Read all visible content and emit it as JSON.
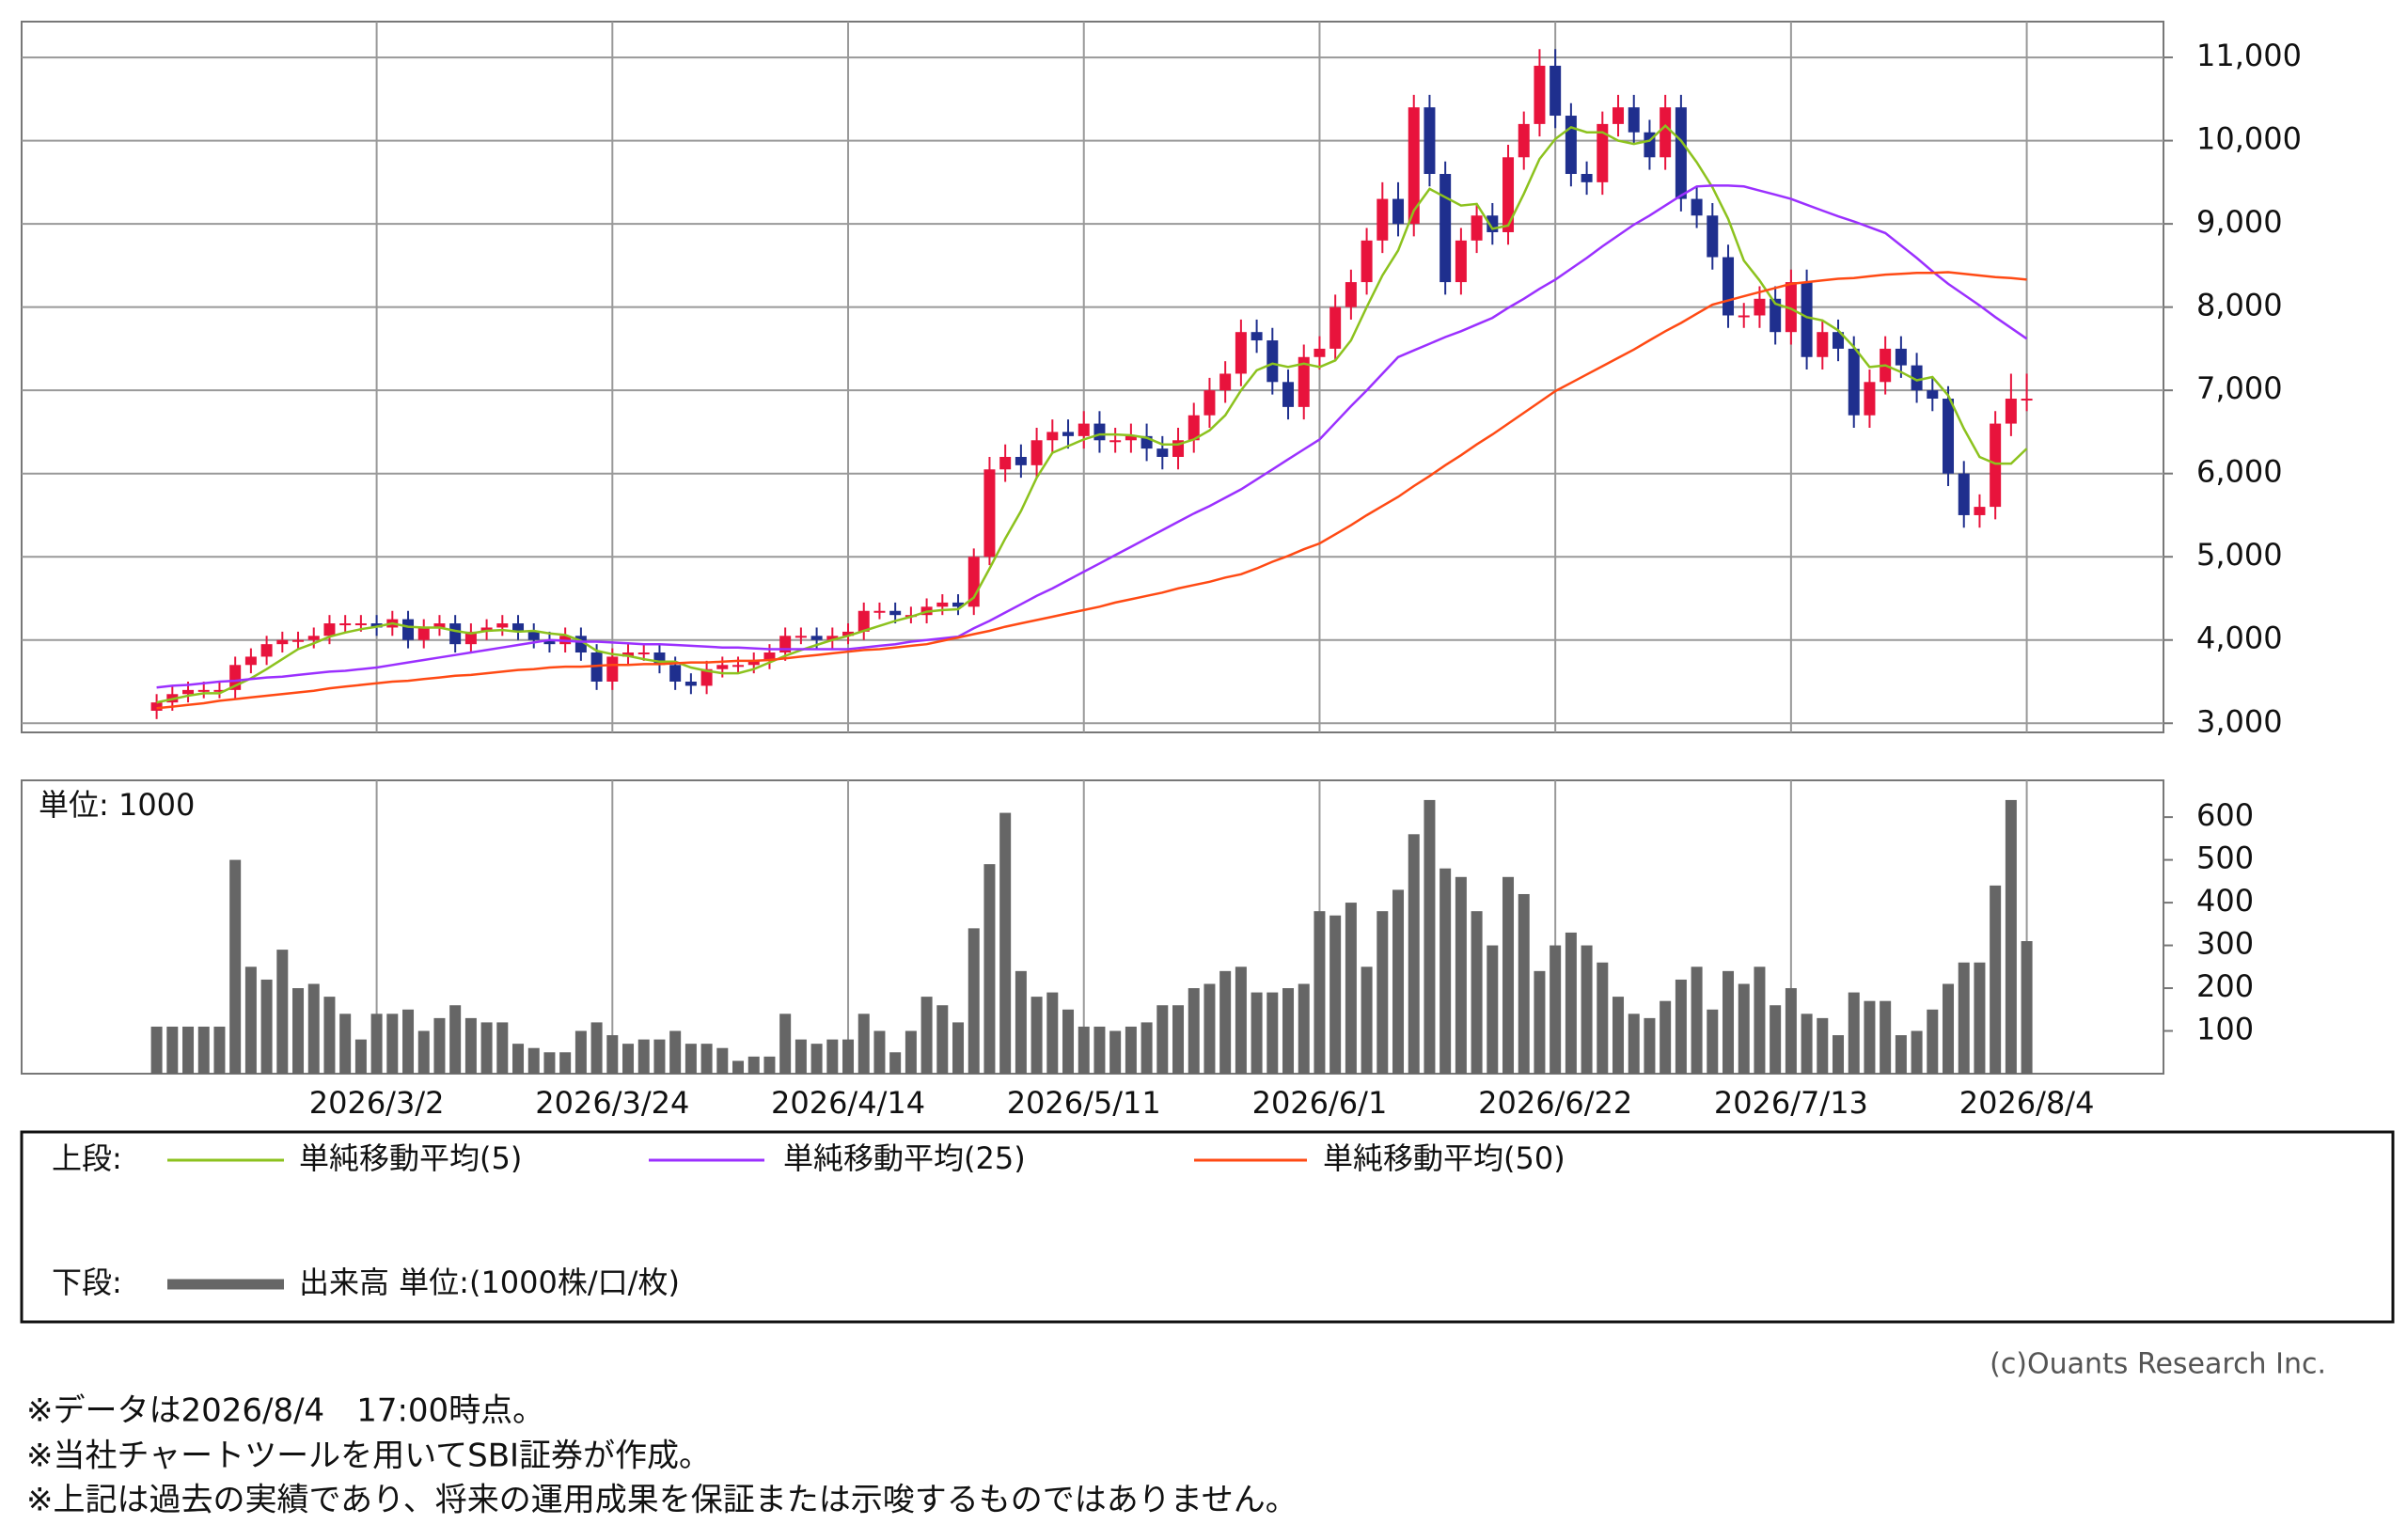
{
  "chart_data": [
    {
      "type": "candlestick",
      "panel_label": "上段:",
      "ylim": [
        2890,
        11430
      ],
      "yticks": [
        {
          "value": 3000,
          "label": "3,000"
        },
        {
          "value": 4000,
          "label": "4,000"
        },
        {
          "value": 5000,
          "label": "5,000"
        },
        {
          "value": 6000,
          "label": "6,000"
        },
        {
          "value": 7000,
          "label": "7,000"
        },
        {
          "value": 8000,
          "label": "8,000"
        },
        {
          "value": 9000,
          "label": "9,000"
        },
        {
          "value": 10000,
          "label": "10,000"
        },
        {
          "value": 11000,
          "label": "11,000"
        }
      ],
      "grid": true,
      "up_color": "#e8133c",
      "down_color": "#1f2f8e",
      "open": [
        3150,
        3250,
        3350,
        3400,
        3400,
        3400,
        3700,
        3800,
        3950,
        4000,
        4000,
        4050,
        4200,
        4200,
        4200,
        4150,
        4250,
        4000,
        4150,
        4200,
        3950,
        4100,
        4150,
        4200,
        4100,
        4000,
        3950,
        4050,
        3850,
        3500,
        3800,
        3850,
        3850,
        3700,
        3500,
        3450,
        3650,
        3700,
        3700,
        3750,
        3850,
        4050,
        4050,
        4000,
        4050,
        4100,
        4350,
        4350,
        4300,
        4300,
        4400,
        4450,
        4400,
        5000,
        6050,
        6200,
        6100,
        6400,
        6500,
        6450,
        6600,
        6400,
        6400,
        6450,
        6300,
        6200,
        6400,
        6700,
        7000,
        7200,
        7700,
        7600,
        7100,
        6800,
        7400,
        7500,
        8000,
        8300,
        8800,
        9300,
        9000,
        10400,
        9600,
        8300,
        8800,
        9100,
        8900,
        9800,
        10200,
        10900,
        10300,
        9600,
        9500,
        10200,
        10400,
        10100,
        9800,
        10400,
        9300,
        9100,
        8600,
        7900,
        7900,
        8100,
        7700,
        8300,
        7400,
        7700,
        7500,
        6700,
        7100,
        7500,
        7300,
        7000,
        6900,
        6000,
        5500,
        5600,
        6600,
        6900
      ],
      "high": [
        3350,
        3450,
        3500,
        3500,
        3500,
        3800,
        3900,
        4050,
        4100,
        4100,
        4150,
        4300,
        4300,
        4300,
        4300,
        4350,
        4350,
        4250,
        4300,
        4300,
        4200,
        4250,
        4300,
        4300,
        4200,
        4100,
        4150,
        4150,
        3950,
        3900,
        3950,
        3950,
        3950,
        3800,
        3600,
        3750,
        3800,
        3800,
        3850,
        3950,
        4150,
        4150,
        4150,
        4150,
        4200,
        4450,
        4450,
        4450,
        4400,
        4500,
        4550,
        4550,
        5100,
        6200,
        6350,
        6350,
        6550,
        6650,
        6650,
        6750,
        6750,
        6550,
        6600,
        6600,
        6450,
        6550,
        6850,
        7150,
        7350,
        7850,
        7850,
        7750,
        7250,
        7550,
        7650,
        8150,
        8450,
        8950,
        9500,
        9500,
        10550,
        10550,
        9750,
        8950,
        9250,
        9250,
        9950,
        10350,
        11100,
        11100,
        10450,
        9750,
        10350,
        10550,
        10550,
        10250,
        10550,
        10550,
        9450,
        9250,
        8750,
        8050,
        8250,
        8250,
        8450,
        8450,
        7850,
        7850,
        7650,
        7250,
        7650,
        7650,
        7450,
        7150,
        7050,
        6150,
        5750,
        6750,
        7200,
        7200
      ],
      "low": [
        3050,
        3150,
        3250,
        3300,
        3300,
        3300,
        3600,
        3700,
        3850,
        3900,
        3900,
        3950,
        4100,
        4100,
        4050,
        4050,
        3900,
        3900,
        4050,
        3850,
        3850,
        4000,
        4050,
        4000,
        3900,
        3850,
        3850,
        3750,
        3400,
        3400,
        3700,
        3750,
        3600,
        3400,
        3350,
        3350,
        3550,
        3600,
        3600,
        3650,
        3750,
        3950,
        3900,
        3900,
        3950,
        4000,
        4250,
        4200,
        4200,
        4200,
        4300,
        4300,
        4300,
        4900,
        5900,
        5950,
        5950,
        6250,
        6300,
        6300,
        6250,
        6250,
        6250,
        6150,
        6050,
        6050,
        6250,
        6550,
        6850,
        7050,
        7450,
        6950,
        6650,
        6650,
        7250,
        7350,
        7850,
        8150,
        8650,
        8850,
        8850,
        9450,
        8150,
        8150,
        8650,
        8750,
        8750,
        9650,
        10050,
        10150,
        9450,
        9350,
        9350,
        10050,
        9950,
        9650,
        9650,
        9150,
        8950,
        8450,
        7750,
        7750,
        7750,
        7550,
        7550,
        7250,
        7250,
        7350,
        6550,
        6550,
        6950,
        7150,
        6850,
        6750,
        5850,
        5350,
        5350,
        5450,
        6450,
        6750
      ],
      "close": [
        3250,
        3350,
        3400,
        3400,
        3400,
        3700,
        3800,
        3950,
        4000,
        4000,
        4050,
        4200,
        4200,
        4200,
        4150,
        4250,
        4000,
        4150,
        4200,
        3950,
        4100,
        4150,
        4200,
        4100,
        4000,
        3950,
        4050,
        3850,
        3500,
        3800,
        3850,
        3850,
        3700,
        3500,
        3450,
        3650,
        3700,
        3700,
        3750,
        3850,
        4050,
        4050,
        4000,
        4050,
        4100,
        4350,
        4350,
        4300,
        4300,
        4400,
        4450,
        4400,
        5000,
        6050,
        6200,
        6100,
        6400,
        6500,
        6450,
        6600,
        6400,
        6400,
        6450,
        6300,
        6200,
        6400,
        6700,
        7000,
        7200,
        7700,
        7600,
        7100,
        6800,
        7400,
        7500,
        8000,
        8300,
        8800,
        9300,
        9000,
        10400,
        9600,
        8300,
        8800,
        9100,
        8900,
        9800,
        10200,
        10900,
        10300,
        9600,
        9500,
        10200,
        10400,
        10100,
        9800,
        10400,
        9300,
        9100,
        8600,
        7900,
        7900,
        8100,
        7700,
        8300,
        7400,
        7700,
        7500,
        6700,
        7100,
        7500,
        7300,
        7000,
        6900,
        6000,
        5500,
        5600,
        6600,
        6900,
        6900
      ],
      "series": [
        {
          "name": "単純移動平均(5)",
          "color": "#8cc21e",
          "values": [
            3250,
            3290,
            3330,
            3360,
            3360,
            3450,
            3540,
            3650,
            3770,
            3890,
            3960,
            4040,
            4090,
            4130,
            4160,
            4200,
            4160,
            4150,
            4150,
            4110,
            4080,
            4110,
            4120,
            4100,
            4110,
            4080,
            4060,
            3990,
            3870,
            3830,
            3810,
            3770,
            3740,
            3740,
            3670,
            3630,
            3600,
            3600,
            3650,
            3730,
            3810,
            3880,
            3940,
            4000,
            4050,
            4110,
            4170,
            4230,
            4280,
            4340,
            4360,
            4370,
            4510,
            4860,
            5220,
            5550,
            5950,
            6250,
            6330,
            6410,
            6470,
            6470,
            6460,
            6430,
            6350,
            6350,
            6410,
            6520,
            6700,
            7000,
            7240,
            7320,
            7280,
            7320,
            7280,
            7360,
            7600,
            8000,
            8380,
            8680,
            9160,
            9420,
            9320,
            9220,
            9240,
            8940,
            8980,
            9360,
            9780,
            10020,
            10160,
            10100,
            10100,
            10000,
            9960,
            10000,
            10180,
            10000,
            9740,
            9440,
            9060,
            8560,
            8320,
            8040,
            7980,
            7880,
            7840,
            7720,
            7520,
            7280,
            7300,
            7220,
            7120,
            7160,
            6940,
            6540,
            6200,
            6120,
            6120,
            6300
          ]
        },
        {
          "name": "単純移動平均(25)",
          "color": "#9b30ff",
          "values": [
            3430,
            3450,
            3460,
            3480,
            3500,
            3510,
            3530,
            3550,
            3560,
            3580,
            3600,
            3620,
            3630,
            3650,
            3670,
            3700,
            3730,
            3760,
            3790,
            3820,
            3850,
            3880,
            3910,
            3940,
            3970,
            4000,
            3990,
            3980,
            3980,
            3970,
            3960,
            3950,
            3950,
            3940,
            3930,
            3920,
            3910,
            3910,
            3900,
            3890,
            3890,
            3890,
            3890,
            3890,
            3890,
            3910,
            3930,
            3950,
            3980,
            4000,
            4020,
            4040,
            4140,
            4230,
            4330,
            4430,
            4530,
            4620,
            4720,
            4820,
            4920,
            5020,
            5120,
            5220,
            5320,
            5420,
            5520,
            5610,
            5710,
            5810,
            5930,
            6050,
            6170,
            6290,
            6410,
            6610,
            6810,
            7000,
            7200,
            7400,
            7480,
            7560,
            7640,
            7710,
            7790,
            7870,
            7990,
            8100,
            8220,
            8330,
            8460,
            8590,
            8730,
            8860,
            8990,
            9100,
            9220,
            9340,
            9450,
            9460,
            9460,
            9450,
            9400,
            9350,
            9300,
            9230,
            9160,
            9090,
            9030,
            8960,
            8890,
            8740,
            8590,
            8430,
            8280,
            8150,
            8020,
            7880,
            7750,
            7620
          ]
        },
        {
          "name": "単純移動平均(50)",
          "color": "#ff4a14",
          "values": [
            3180,
            3200,
            3220,
            3240,
            3270,
            3290,
            3310,
            3330,
            3350,
            3370,
            3390,
            3420,
            3440,
            3460,
            3480,
            3500,
            3510,
            3530,
            3550,
            3570,
            3580,
            3600,
            3620,
            3640,
            3650,
            3670,
            3680,
            3680,
            3690,
            3700,
            3700,
            3710,
            3710,
            3720,
            3730,
            3730,
            3740,
            3750,
            3750,
            3760,
            3780,
            3800,
            3820,
            3840,
            3860,
            3880,
            3890,
            3910,
            3930,
            3950,
            3990,
            4030,
            4070,
            4110,
            4160,
            4200,
            4240,
            4280,
            4320,
            4360,
            4400,
            4450,
            4490,
            4530,
            4570,
            4620,
            4660,
            4700,
            4750,
            4790,
            4860,
            4940,
            5010,
            5090,
            5160,
            5270,
            5380,
            5500,
            5610,
            5720,
            5850,
            5970,
            6100,
            6220,
            6350,
            6470,
            6600,
            6730,
            6860,
            6990,
            7090,
            7190,
            7290,
            7390,
            7490,
            7600,
            7710,
            7810,
            7920,
            8030,
            8080,
            8130,
            8180,
            8230,
            8280,
            8300,
            8320,
            8340,
            8350,
            8370,
            8390,
            8400,
            8410,
            8410,
            8420,
            8400,
            8380,
            8360,
            8350,
            8330
          ]
        }
      ]
    },
    {
      "type": "bar",
      "panel_label": "下段:",
      "unit_label": "単位: 1000",
      "ylim": [
        0,
        686
      ],
      "yticks": [
        100,
        200,
        300,
        400,
        500,
        600
      ],
      "grid": true,
      "categories": [
        null,
        null,
        null,
        null,
        null,
        null,
        null,
        null,
        null,
        null,
        null,
        null,
        null,
        null,
        "2026/3/2",
        null,
        null,
        null,
        null,
        null,
        null,
        null,
        null,
        null,
        null,
        null,
        null,
        null,
        null,
        "2026/3/24",
        null,
        null,
        null,
        null,
        null,
        null,
        null,
        null,
        null,
        null,
        null,
        null,
        null,
        null,
        "2026/4/14",
        null,
        null,
        null,
        null,
        null,
        null,
        null,
        null,
        null,
        null,
        null,
        null,
        null,
        null,
        "2026/5/11",
        null,
        null,
        null,
        null,
        null,
        null,
        null,
        null,
        null,
        null,
        null,
        null,
        null,
        null,
        "2026/6/1",
        null,
        null,
        null,
        null,
        null,
        null,
        null,
        null,
        null,
        null,
        null,
        null,
        null,
        null,
        "2026/6/22",
        null,
        null,
        null,
        null,
        null,
        null,
        null,
        null,
        null,
        null,
        null,
        null,
        null,
        null,
        "2026/7/13",
        null,
        null,
        null,
        null,
        null,
        null,
        null,
        null,
        null,
        null,
        null,
        null,
        null,
        null,
        "2026/8/4"
      ],
      "series": [
        {
          "name": "出来高 単位:(1000株/口/枚)",
          "color": "#666666",
          "values": [
            110,
            110,
            110,
            110,
            110,
            500,
            250,
            220,
            290,
            200,
            210,
            180,
            140,
            80,
            140,
            140,
            150,
            100,
            130,
            160,
            130,
            120,
            120,
            70,
            60,
            50,
            50,
            100,
            120,
            90,
            70,
            80,
            80,
            100,
            70,
            70,
            60,
            30,
            40,
            40,
            140,
            80,
            70,
            80,
            80,
            140,
            100,
            50,
            100,
            180,
            160,
            120,
            340,
            490,
            610,
            240,
            180,
            190,
            150,
            110,
            110,
            100,
            110,
            120,
            160,
            160,
            200,
            210,
            240,
            250,
            190,
            190,
            200,
            210,
            380,
            370,
            400,
            250,
            380,
            430,
            560,
            640,
            480,
            460,
            380,
            300,
            460,
            420,
            240,
            300,
            330,
            300,
            260,
            180,
            140,
            130,
            170,
            220,
            250,
            150,
            240,
            210,
            250,
            160,
            200,
            140,
            130,
            90,
            190,
            170,
            170,
            90,
            100,
            150,
            210,
            260,
            260,
            440,
            640,
            310
          ]
        }
      ]
    }
  ],
  "credit": "(c)Ouants Research Inc.",
  "notes": [
    "※データは2026/8/4　17:00時点。",
    "※当社チャートツールを用いてSBI証券が作成。",
    "※上記は過去の実績であり、将来の運用成果を保証または示唆するものではありません。"
  ]
}
